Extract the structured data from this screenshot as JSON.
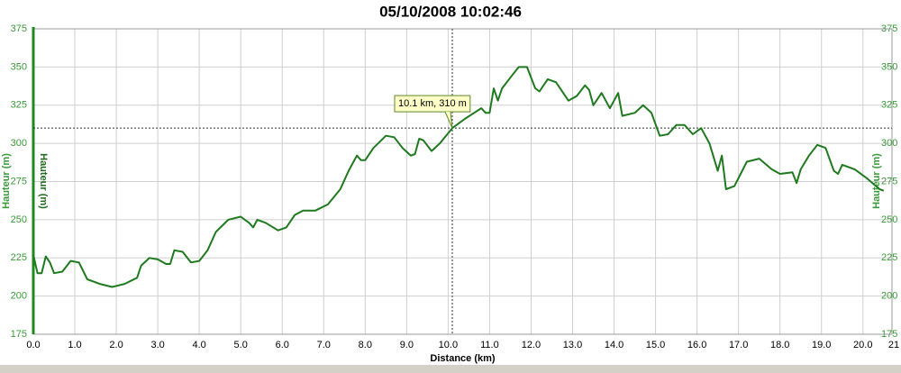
{
  "chart_data": {
    "type": "line",
    "title": "05/10/2008 10:02:46",
    "xlabel": "Distance (km)",
    "ylabel": "Hauteur (m)",
    "annotation": "10.1 km, 310 m",
    "crosshair": {
      "x": 10.1,
      "y": 310
    },
    "grid": true,
    "xlim": [
      0,
      20.7
    ],
    "ylim": [
      175,
      375
    ],
    "xticks": [
      {
        "value": 0,
        "label": "0.0"
      },
      {
        "value": 1,
        "label": "1.0"
      },
      {
        "value": 2,
        "label": "2.0"
      },
      {
        "value": 3,
        "label": "3.0"
      },
      {
        "value": 4,
        "label": "4.0"
      },
      {
        "value": 5,
        "label": "5.0"
      },
      {
        "value": 6,
        "label": "6.0"
      },
      {
        "value": 7,
        "label": "7.0"
      },
      {
        "value": 8,
        "label": "8.0"
      },
      {
        "value": 9,
        "label": "9.0"
      },
      {
        "value": 10,
        "label": "10.0"
      },
      {
        "value": 11,
        "label": "11.0"
      },
      {
        "value": 12,
        "label": "12.0"
      },
      {
        "value": 13,
        "label": "13.0"
      },
      {
        "value": 14,
        "label": "14.0"
      },
      {
        "value": 15,
        "label": "15.0"
      },
      {
        "value": 16,
        "label": "16.0"
      },
      {
        "value": 17,
        "label": "17.0"
      },
      {
        "value": 18,
        "label": "18.0"
      },
      {
        "value": 19,
        "label": "19.0"
      },
      {
        "value": 20,
        "label": "20.0"
      },
      21
    ],
    "yticks": [
      175,
      200,
      225,
      250,
      275,
      300,
      325,
      350,
      375
    ],
    "series": [
      {
        "name": "Hauteur",
        "color": "#1f7a1f",
        "x": [
          0.0,
          0.1,
          0.2,
          0.3,
          0.4,
          0.5,
          0.7,
          0.9,
          1.1,
          1.3,
          1.6,
          1.9,
          2.2,
          2.5,
          2.6,
          2.8,
          3.0,
          3.2,
          3.3,
          3.4,
          3.6,
          3.8,
          4.0,
          4.2,
          4.4,
          4.7,
          5.0,
          5.2,
          5.3,
          5.4,
          5.6,
          5.9,
          6.1,
          6.3,
          6.5,
          6.8,
          7.1,
          7.4,
          7.6,
          7.8,
          7.9,
          8.0,
          8.2,
          8.5,
          8.7,
          8.9,
          9.1,
          9.2,
          9.3,
          9.4,
          9.6,
          9.8,
          10.1,
          10.4,
          10.8,
          10.9,
          11.0,
          11.1,
          11.2,
          11.3,
          11.5,
          11.7,
          11.9,
          12.1,
          12.2,
          12.4,
          12.6,
          12.9,
          13.1,
          13.3,
          13.4,
          13.5,
          13.7,
          13.9,
          14.1,
          14.2,
          14.5,
          14.7,
          14.9,
          15.1,
          15.3,
          15.5,
          15.7,
          15.9,
          16.1,
          16.3,
          16.5,
          16.6,
          16.7,
          16.9,
          17.2,
          17.5,
          17.8,
          18.0,
          18.3,
          18.4,
          18.5,
          18.7,
          18.9,
          19.1,
          19.3,
          19.4,
          19.5,
          19.8,
          20.1,
          20.4,
          20.5
        ],
        "values": [
          227,
          215,
          215,
          226,
          222,
          215,
          216,
          223,
          222,
          211,
          208,
          206,
          208,
          212,
          220,
          225,
          224,
          221,
          221,
          230,
          229,
          222,
          223,
          230,
          242,
          250,
          252,
          248,
          245,
          250,
          248,
          243,
          245,
          253,
          256,
          256,
          260,
          270,
          282,
          292,
          289,
          289,
          297,
          305,
          304,
          297,
          292,
          293,
          303,
          302,
          295,
          300,
          310,
          316,
          323,
          320,
          320,
          336,
          328,
          336,
          343,
          350,
          350,
          336,
          334,
          342,
          340,
          328,
          331,
          338,
          335,
          325,
          333,
          323,
          333,
          318,
          320,
          325,
          320,
          305,
          306,
          312,
          312,
          306,
          310,
          300,
          282,
          292,
          270,
          272,
          288,
          290,
          283,
          280,
          281,
          274,
          283,
          292,
          299,
          297,
          282,
          280,
          286,
          283,
          277,
          270,
          269
        ]
      }
    ]
  }
}
